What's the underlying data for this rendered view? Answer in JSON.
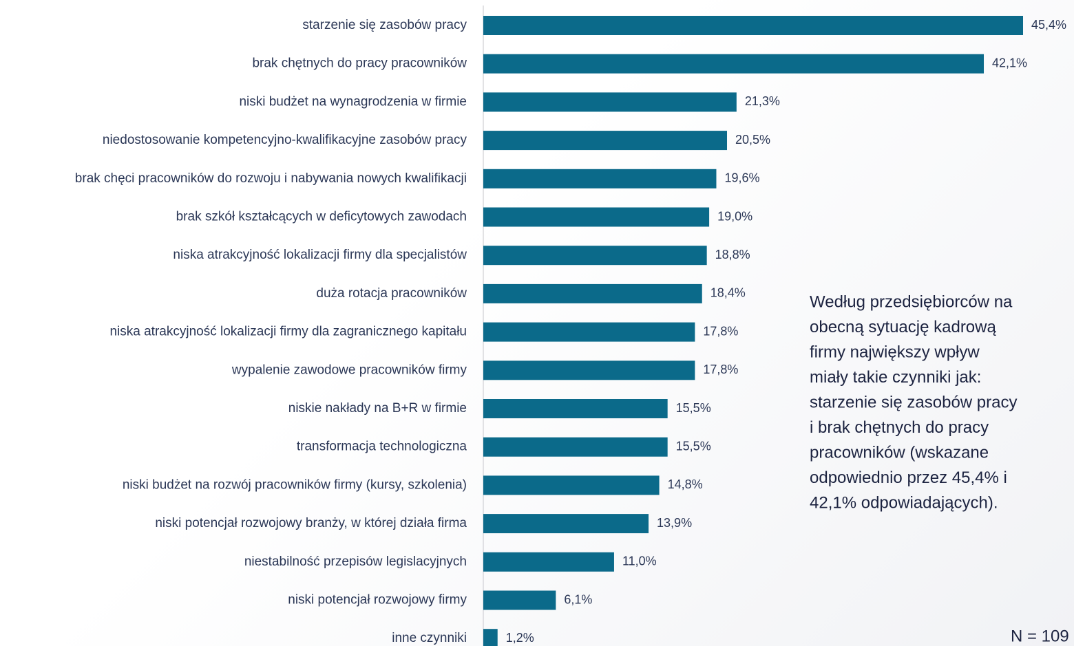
{
  "chart_data": {
    "type": "bar",
    "orientation": "horizontal",
    "color": "#0b6a8a",
    "categories": [
      "starzenie się zasobów pracy",
      "brak chętnych do pracy pracowników",
      "niski budżet na wynagrodzenia w firmie",
      "niedostosowanie kompetencyjno-kwalifikacyjne zasobów pracy",
      "brak chęci pracowników do rozwoju i nabywania nowych kwalifikacji",
      "brak szkół kształcących w deficytowych zawodach",
      "niska atrakcyjność lokalizacji firmy dla specjalistów",
      "duża rotacja pracowników",
      "niska atrakcyjność lokalizacji firmy dla zagranicznego kapitału",
      "wypalenie zawodowe pracowników firmy",
      "niskie nakłady na B+R w firmie",
      "transformacja technologiczna",
      "niski budżet na rozwój pracowników firmy (kursy, szkolenia)",
      "niski potencjał rozwojowy branży, w której działa firma",
      "niestabilność przepisów legislacyjnych",
      "niski potencjał rozwojowy firmy",
      "inne czynniki"
    ],
    "values": [
      45.4,
      42.1,
      21.3,
      20.5,
      19.6,
      19.0,
      18.8,
      18.4,
      17.8,
      17.8,
      15.5,
      15.5,
      14.8,
      13.9,
      11.0,
      6.1,
      1.2
    ],
    "value_labels": [
      "45,4%",
      "42,1%",
      "21,3%",
      "20,5%",
      "19,6%",
      "19,0%",
      "18,8%",
      "18,4%",
      "17,8%",
      "17,8%",
      "15,5%",
      "15,5%",
      "14,8%",
      "13,9%",
      "11,0%",
      "6,1%",
      "1,2%"
    ],
    "annotation": [
      "Według przedsiębiorców na",
      "obecną sytuację kadrową",
      "firmy największy wpływ",
      "miały takie czynniki jak:",
      "starzenie się zasobów pracy",
      "i brak chętnych do pracy",
      "pracowników (wskazane",
      "odpowiednio przez 45,4% i",
      "42,1% odpowiadających)."
    ],
    "note": "N = 109"
  }
}
